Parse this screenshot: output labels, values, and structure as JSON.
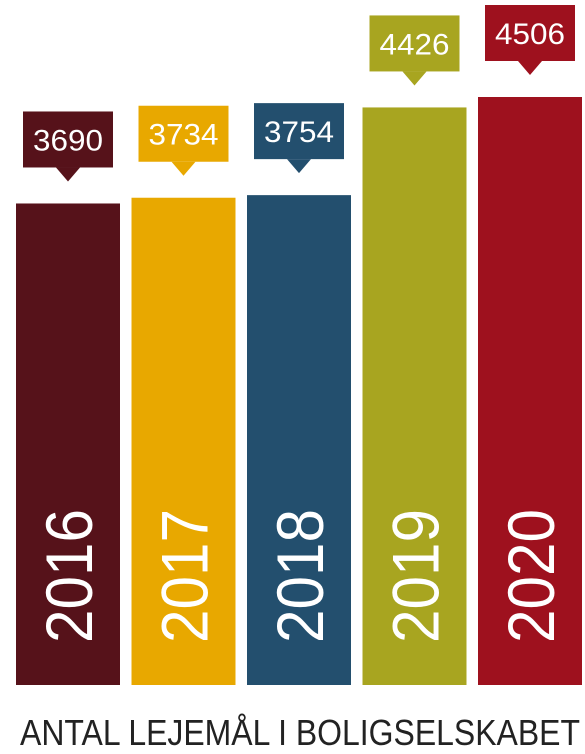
{
  "chart_data": {
    "type": "bar",
    "title": "ANTAL LEJEMÅL I BOLIGSELSKABET",
    "categories": [
      "2016",
      "2017",
      "2018",
      "2019",
      "2020"
    ],
    "values": [
      3690,
      3734,
      3754,
      4426,
      4506
    ],
    "colors": [
      "#56121a",
      "#e8a800",
      "#234f6e",
      "#a8a520",
      "#9e111e"
    ]
  }
}
